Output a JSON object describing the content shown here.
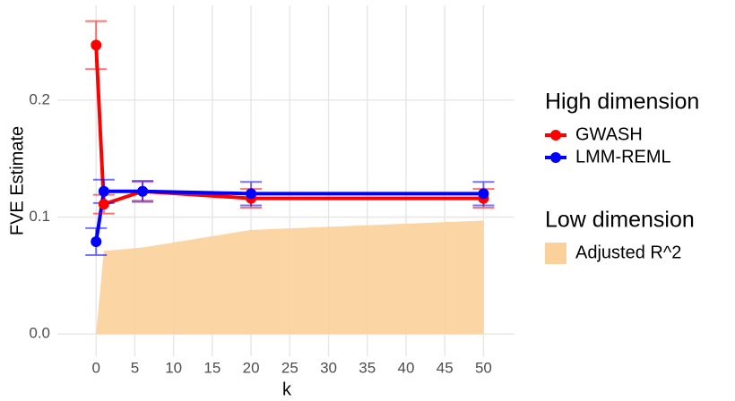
{
  "chart_data": {
    "type": "line",
    "x_label": "k",
    "y_label": "FVE Estimate",
    "x": [
      0,
      1,
      6,
      20,
      50
    ],
    "xlim": [
      -5,
      54
    ],
    "ylim": [
      -0.019,
      0.281
    ],
    "xticks": [
      0,
      5,
      10,
      15,
      20,
      25,
      30,
      35,
      40,
      45,
      50
    ],
    "yticks": [
      {
        "value": 0,
        "label": "0.0"
      },
      0.1,
      0.2
    ],
    "grid": true,
    "legend": "right",
    "legend_groups": [
      "High dimension",
      "Low dimension"
    ],
    "series": [
      {
        "name": "Adjusted R^2",
        "kind": "area",
        "legend_group": 1,
        "color": "#fbd09a",
        "values": [
          0,
          0.071,
          0.074,
          0.089,
          0.097
        ]
      },
      {
        "name": "GWASH",
        "kind": "line",
        "legend_group": 0,
        "color": "#ff0000",
        "values": [
          0.247,
          0.111,
          0.122,
          0.116,
          0.116
        ],
        "errors": [
          0.0205,
          0.008,
          0.008,
          0.008,
          0.008
        ]
      },
      {
        "name": "LMM-REML",
        "kind": "line",
        "legend_group": 0,
        "color": "#0000ff",
        "values": [
          0.079,
          0.122,
          0.122,
          0.12,
          0.12
        ],
        "errors": [
          0.0115,
          0.01,
          0.009,
          0.01,
          0.01
        ]
      }
    ]
  }
}
